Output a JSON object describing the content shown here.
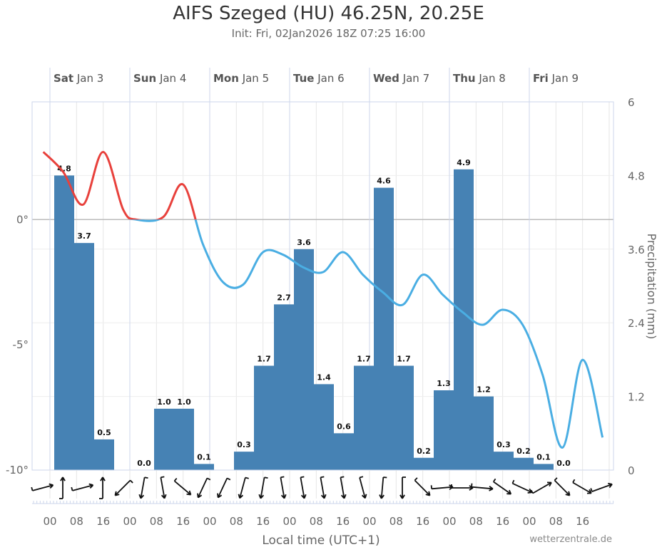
{
  "title": "AIFS Szeged (HU) 46.25N, 20.25E",
  "subtitle": "Init: Fri, 02Jan2026 18Z 07:25 16:00",
  "credit": "wetterzentrale.de",
  "chart_data": {
    "type": "bar+line",
    "title": "AIFS Szeged (HU) 46.25N, 20.25E",
    "xlabel": "Local time (UTC+1)",
    "y_left": {
      "label": "",
      "ylim": [
        -10,
        4.7
      ],
      "ticks": [
        "0°",
        "-5°",
        "-10°"
      ],
      "tick_values": [
        0,
        -5,
        -10
      ]
    },
    "y_right": {
      "label": "Precipitation (mm)",
      "ylim": [
        0,
        6
      ],
      "ticks": [
        "0",
        "1.2",
        "2.4",
        "3.6",
        "4.8",
        "6"
      ],
      "tick_values": [
        0,
        1.2,
        2.4,
        3.6,
        4.8,
        6
      ]
    },
    "days": [
      {
        "dow": "Sat",
        "date": "Jan 3"
      },
      {
        "dow": "Sun",
        "date": "Jan 4"
      },
      {
        "dow": "Mon",
        "date": "Jan 5"
      },
      {
        "dow": "Tue",
        "date": "Jan 6"
      },
      {
        "dow": "Wed",
        "date": "Jan 7"
      },
      {
        "dow": "Thu",
        "date": "Jan 8"
      },
      {
        "dow": "Fri",
        "date": "Jan 9"
      }
    ],
    "hour_ticks": [
      "00",
      "08",
      "16",
      "00",
      "08",
      "16",
      "00",
      "08",
      "16",
      "00",
      "08",
      "16",
      "00",
      "08",
      "16",
      "00",
      "08",
      "16",
      "00",
      "08",
      "16"
    ],
    "precipitation_6h_mm": [
      4.8,
      3.7,
      0.5,
      null,
      0.0,
      1.0,
      1.0,
      0.1,
      null,
      0.3,
      1.7,
      2.7,
      3.6,
      1.4,
      0.6,
      1.7,
      4.6,
      1.7,
      0.2,
      1.3,
      4.9,
      1.2,
      0.3,
      0.2,
      0.1,
      0.0
    ],
    "temperature_series": {
      "name": "Temperature (°C)",
      "hours_from_jan3_00": [
        -2,
        4,
        10,
        16,
        22,
        26,
        34,
        40,
        46,
        52,
        58,
        64,
        70,
        76,
        82,
        88,
        94,
        100,
        106,
        112,
        118,
        124,
        130,
        136,
        142,
        148,
        154,
        160,
        166
      ],
      "values": [
        2.7,
        1.9,
        0.6,
        2.7,
        0.4,
        0.0,
        0.1,
        1.4,
        -1.0,
        -2.5,
        -2.6,
        -1.3,
        -1.4,
        -1.9,
        -2.1,
        -1.3,
        -2.2,
        -2.9,
        -3.4,
        -2.2,
        -3.0,
        -3.7,
        -4.2,
        -3.6,
        -4.2,
        -6.2,
        -9.1,
        -5.6,
        -8.7
      ],
      "color_above_zero": "#e8413c",
      "color_below_zero": "#4aaee3"
    },
    "wind_direction_screen_deg": [
      -15,
      -90,
      -15,
      -90,
      135,
      100,
      80,
      40,
      115,
      115,
      105,
      100,
      80,
      80,
      80,
      80,
      75,
      95,
      90,
      45,
      -5,
      0,
      5,
      35,
      25,
      -30,
      45,
      30,
      -20
    ],
    "bar_color": "#4682b4",
    "grid": true
  }
}
